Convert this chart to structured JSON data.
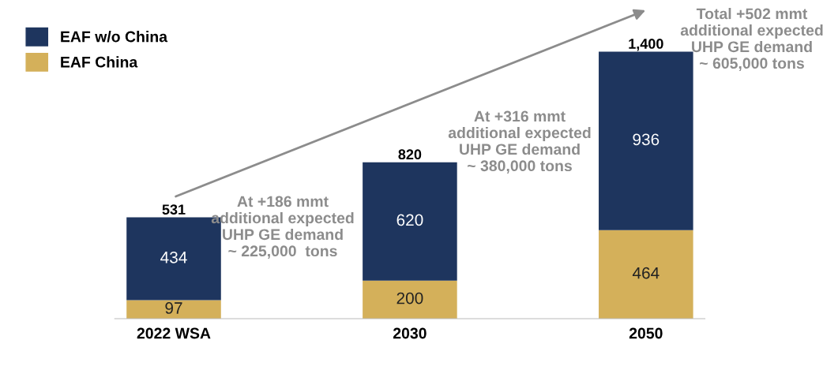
{
  "chart_data": {
    "type": "bar",
    "stacked": true,
    "categories": [
      "2022 WSA",
      "2030",
      "2050"
    ],
    "series": [
      {
        "name": "EAF China",
        "color": "#d4b05a",
        "values": [
          97,
          200,
          464
        ]
      },
      {
        "name": "EAF w/o China",
        "color": "#1e355e",
        "values": [
          434,
          620,
          936
        ]
      }
    ],
    "data_labels": true,
    "totals": [
      "531",
      "820",
      "1,400"
    ],
    "legend": "top left",
    "annotations": [
      "At +186 mmt\nadditional expected\nUHP GE demand\n~ 225,000  tons",
      "At +316 mmt\nadditional expected\nUHP GE demand\n~ 380,000 tons",
      "Total +502 mmt\nadditional expected\nUHP GE demand\n~ 605,000 tons"
    ]
  }
}
